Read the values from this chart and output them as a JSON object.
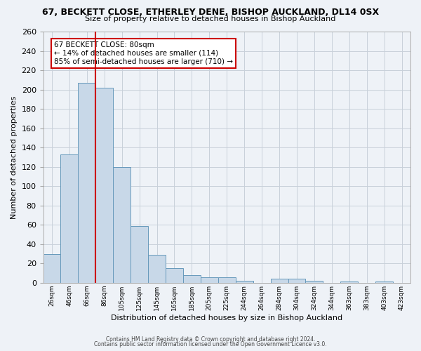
{
  "title": "67, BECKETT CLOSE, ETHERLEY DENE, BISHOP AUCKLAND, DL14 0SX",
  "subtitle": "Size of property relative to detached houses in Bishop Auckland",
  "xlabel": "Distribution of detached houses by size in Bishop Auckland",
  "ylabel": "Number of detached properties",
  "bar_labels": [
    "26sqm",
    "46sqm",
    "66sqm",
    "86sqm",
    "105sqm",
    "125sqm",
    "145sqm",
    "165sqm",
    "185sqm",
    "205sqm",
    "225sqm",
    "244sqm",
    "264sqm",
    "284sqm",
    "304sqm",
    "324sqm",
    "344sqm",
    "363sqm",
    "383sqm",
    "403sqm",
    "423sqm"
  ],
  "bar_values": [
    30,
    133,
    207,
    202,
    120,
    59,
    29,
    15,
    8,
    6,
    6,
    2,
    0,
    4,
    4,
    2,
    0,
    1,
    0,
    1,
    0
  ],
  "bar_color": "#c8d8e8",
  "bar_edge_color": "#6699bb",
  "ylim": [
    0,
    260
  ],
  "yticks": [
    0,
    20,
    40,
    60,
    80,
    100,
    120,
    140,
    160,
    180,
    200,
    220,
    240,
    260
  ],
  "vline_color": "#cc0000",
  "annotation_title": "67 BECKETT CLOSE: 80sqm",
  "annotation_line1": "← 14% of detached houses are smaller (114)",
  "annotation_line2": "85% of semi-detached houses are larger (710) →",
  "annotation_box_edge": "#cc0000",
  "footer1": "Contains HM Land Registry data © Crown copyright and database right 2024.",
  "footer2": "Contains public sector information licensed under the Open Government Licence v3.0.",
  "bg_color": "#eef2f7",
  "plot_bg_color": "#eef2f7",
  "grid_color": "#c8d0da"
}
